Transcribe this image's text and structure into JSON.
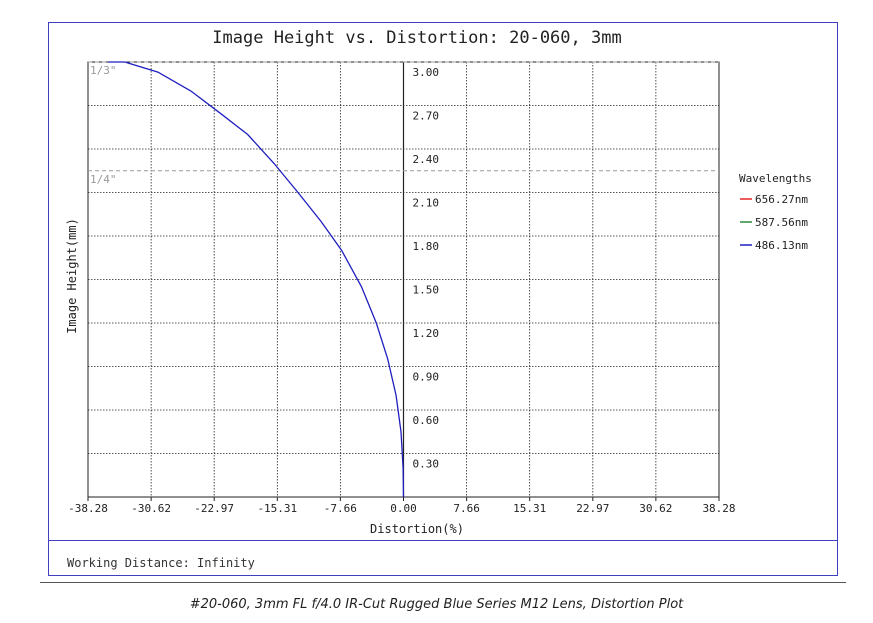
{
  "chart_data": {
    "type": "line",
    "title": "Image Height vs. Distortion: 20-060, 3mm",
    "xlabel": "Distortion(%)",
    "ylabel": "Image Height(mm)",
    "xlim": [
      -38.28,
      38.28
    ],
    "ylim": [
      0,
      3.0
    ],
    "x_ticks": [
      "-38.28",
      "-30.62",
      "-22.97",
      "-15.31",
      "-7.66",
      "0.00",
      "7.66",
      "15.31",
      "22.97",
      "30.62",
      "38.28"
    ],
    "x_tick_values": [
      -38.28,
      -30.62,
      -22.97,
      -15.31,
      -7.66,
      0,
      7.66,
      15.31,
      22.97,
      30.62,
      38.28
    ],
    "y_ticks": [
      "0.30",
      "0.60",
      "0.90",
      "1.20",
      "1.50",
      "1.80",
      "2.10",
      "2.40",
      "2.70",
      "3.00"
    ],
    "y_tick_values": [
      0.3,
      0.6,
      0.9,
      1.2,
      1.5,
      1.8,
      2.1,
      2.4,
      2.7,
      3.0
    ],
    "grid": true,
    "legend_title": "Wavelengths",
    "legend_position": "right",
    "reference_lines": [
      {
        "label": "1/3\"",
        "y": 3.0
      },
      {
        "label": "1/4\"",
        "y": 2.25
      }
    ],
    "series": [
      {
        "name": "656.27nm",
        "color": "#e8262b",
        "x": [],
        "y": []
      },
      {
        "name": "587.56nm",
        "color": "#2e8b3e",
        "x": [],
        "y": []
      },
      {
        "name": "486.13nm",
        "color": "#1f1fbf",
        "x": [
          0,
          -0.05,
          -0.3,
          -0.9,
          -1.9,
          -3.3,
          -5.1,
          -7.5,
          -10.0,
          -12.8,
          -15.7,
          -18.9,
          -22.3,
          -25.8,
          -29.8,
          -33.8,
          -35.8
        ],
        "y": [
          0,
          0.2,
          0.45,
          0.7,
          0.95,
          1.2,
          1.45,
          1.7,
          1.9,
          2.1,
          2.3,
          2.5,
          2.65,
          2.8,
          2.93,
          3.0,
          3.0
        ]
      }
    ]
  },
  "footer": {
    "working_distance": "Working Distance: Infinity",
    "caption": "#20-060, 3mm FL f/4.0 IR-Cut Rugged Blue Series M12 Lens, Distortion Plot"
  }
}
